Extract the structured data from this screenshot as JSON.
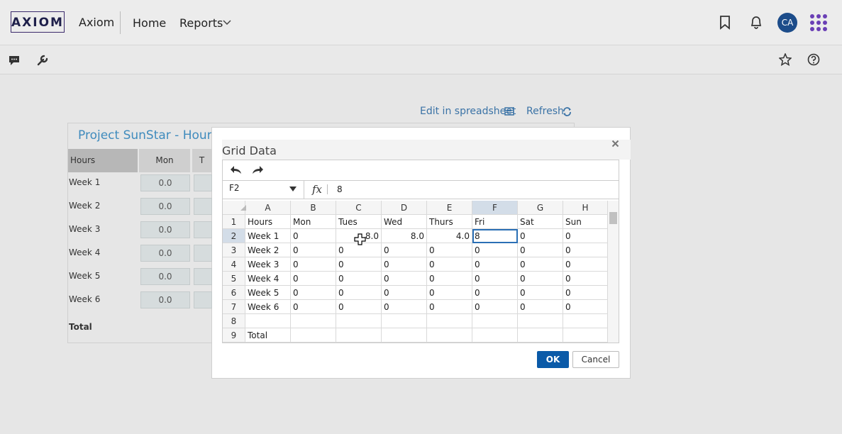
{
  "nav": {
    "logo": "AXIOM",
    "app": "Axiom",
    "links": [
      "Home",
      "Reports"
    ],
    "avatar": "CA"
  },
  "background": {
    "links": [
      "Edit in spreadsheet",
      "Refresh"
    ],
    "card": {
      "title": "Project SunStar - Hours",
      "header": [
        "Hours",
        "Mon",
        "T"
      ],
      "rows": [
        {
          "label": "Week 1",
          "value": "0.0"
        },
        {
          "label": "Week 2",
          "value": "0.0"
        },
        {
          "label": "Week 3",
          "value": "0.0"
        },
        {
          "label": "Week 4",
          "value": "0.0"
        },
        {
          "label": "Week 5",
          "value": "0.0"
        },
        {
          "label": "Week 6",
          "value": "0.0"
        }
      ],
      "total": "Total"
    }
  },
  "dialog": {
    "title": "Grid Data",
    "name_box": "F2",
    "fx": "fx",
    "formula": "8",
    "columns": [
      "A",
      "B",
      "C",
      "D",
      "E",
      "F",
      "G",
      "H"
    ],
    "row_numbers": [
      "1",
      "2",
      "3",
      "4",
      "5",
      "6",
      "7",
      "8",
      "9"
    ],
    "rows": [
      [
        "Hours",
        "Mon",
        "Tues",
        "Wed",
        "Thurs",
        "Fri",
        "Sat",
        "Sun"
      ],
      [
        "Week 1",
        "0",
        "8.0",
        "8.0",
        "4.0",
        "8",
        "0",
        "0"
      ],
      [
        "Week 2",
        "0",
        "0",
        "0",
        "0",
        "0",
        "0",
        "0"
      ],
      [
        "Week 3",
        "0",
        "0",
        "0",
        "0",
        "0",
        "0",
        "0"
      ],
      [
        "Week 4",
        "0",
        "0",
        "0",
        "0",
        "0",
        "0",
        "0"
      ],
      [
        "Week 5",
        "0",
        "0",
        "0",
        "0",
        "0",
        "0",
        "0"
      ],
      [
        "Week 6",
        "0",
        "0",
        "0",
        "0",
        "0",
        "0",
        "0"
      ],
      [
        null,
        null,
        null,
        null,
        null,
        null,
        null,
        null
      ],
      [
        "Total",
        null,
        null,
        null,
        null,
        null,
        null,
        null
      ]
    ],
    "buttons": [
      "OK",
      "Cancel"
    ]
  }
}
